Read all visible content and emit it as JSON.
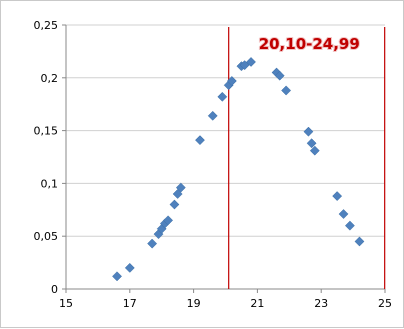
{
  "chart_data": {
    "type": "scatter",
    "title": "",
    "xlabel": "",
    "ylabel": "",
    "xlim": [
      15,
      25
    ],
    "ylim": [
      0,
      0.25
    ],
    "x_ticks": [
      "15",
      "17",
      "19",
      "21",
      "23",
      "25"
    ],
    "y_ticks": [
      "0",
      "0,05",
      "0,1",
      "0,15",
      "0,2",
      "0,25"
    ],
    "grid": true,
    "legend": "none",
    "marker": "diamond",
    "color": "#4f81bd",
    "annotation": "20,10-24,99",
    "reference_lines_x": [
      20.1,
      24.99
    ],
    "reference_line_color": "#c00000",
    "series": [
      {
        "points": [
          [
            16.6,
            0.012
          ],
          [
            17.0,
            0.02
          ],
          [
            17.7,
            0.043
          ],
          [
            17.9,
            0.052
          ],
          [
            18.0,
            0.057
          ],
          [
            18.1,
            0.062
          ],
          [
            18.2,
            0.065
          ],
          [
            18.4,
            0.08
          ],
          [
            18.5,
            0.09
          ],
          [
            18.6,
            0.096
          ],
          [
            19.2,
            0.141
          ],
          [
            19.6,
            0.164
          ],
          [
            19.9,
            0.182
          ],
          [
            20.1,
            0.193
          ],
          [
            20.2,
            0.197
          ],
          [
            20.5,
            0.211
          ],
          [
            20.6,
            0.212
          ],
          [
            20.8,
            0.215
          ],
          [
            21.6,
            0.205
          ],
          [
            21.7,
            0.202
          ],
          [
            21.9,
            0.188
          ],
          [
            22.6,
            0.149
          ],
          [
            22.7,
            0.138
          ],
          [
            22.8,
            0.131
          ],
          [
            23.5,
            0.088
          ],
          [
            23.7,
            0.071
          ],
          [
            23.9,
            0.06
          ],
          [
            24.2,
            0.045
          ]
        ]
      }
    ]
  }
}
